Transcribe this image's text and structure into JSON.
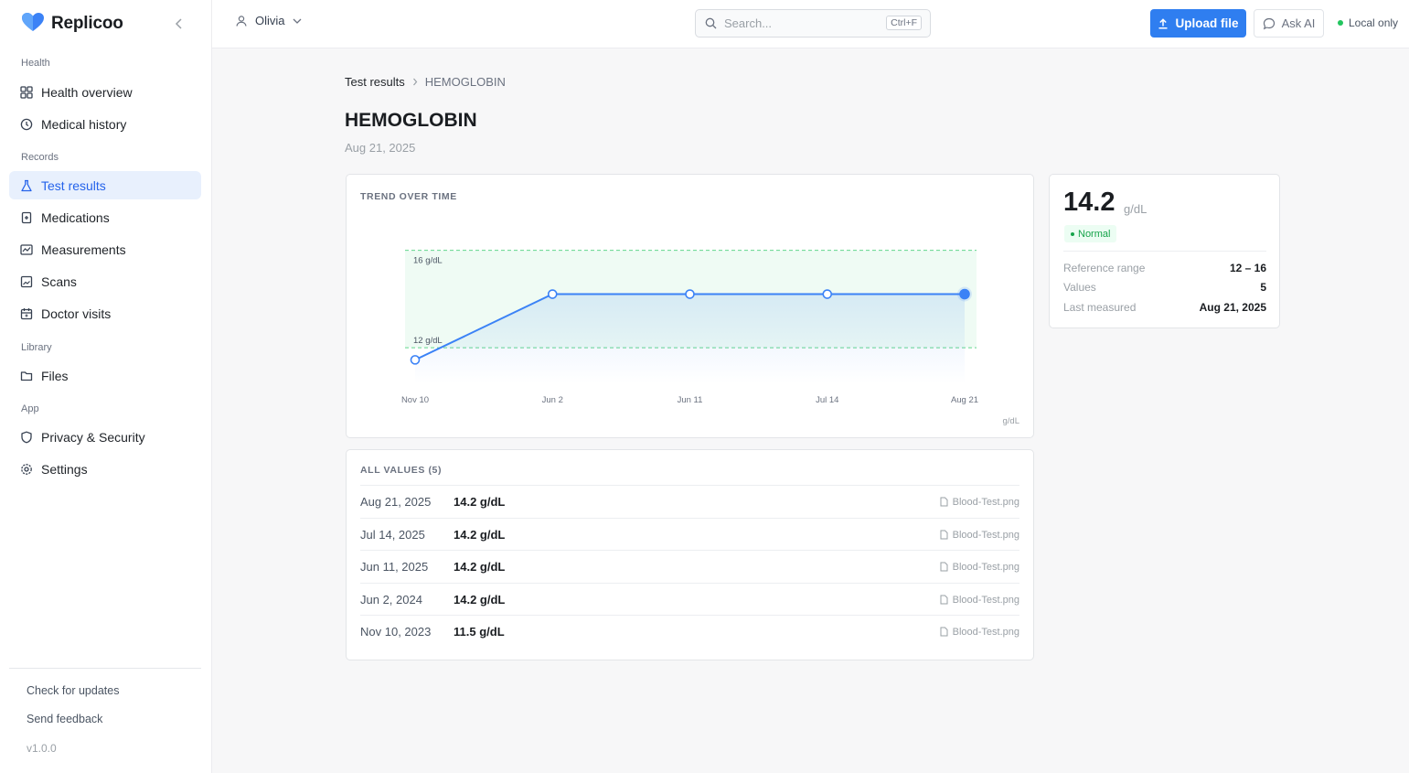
{
  "app": {
    "name": "Replicoo"
  },
  "sidebar": {
    "sections": [
      {
        "label": "Health",
        "items": [
          {
            "label": "Health overview",
            "icon": "grid-icon"
          },
          {
            "label": "Medical history",
            "icon": "clock-icon"
          }
        ]
      },
      {
        "label": "Records",
        "items": [
          {
            "label": "Test results",
            "icon": "flask-icon",
            "active": true
          },
          {
            "label": "Medications",
            "icon": "pill-icon"
          },
          {
            "label": "Measurements",
            "icon": "chart-icon"
          },
          {
            "label": "Scans",
            "icon": "image-icon"
          },
          {
            "label": "Doctor visits",
            "icon": "calendar-icon"
          }
        ]
      },
      {
        "label": "Library",
        "items": [
          {
            "label": "Files",
            "icon": "folder-icon"
          }
        ]
      },
      {
        "label": "App",
        "items": [
          {
            "label": "Privacy & Security",
            "icon": "shield-icon"
          },
          {
            "label": "Settings",
            "icon": "gear-icon"
          }
        ]
      }
    ],
    "footer": {
      "check_updates": "Check for updates",
      "send_feedback": "Send feedback",
      "version": "v1.0.0"
    }
  },
  "header": {
    "user": "Olivia",
    "search_placeholder": "Search...",
    "search_shortcut": "Ctrl+F",
    "upload_label": "Upload file",
    "ask_label": "Ask AI",
    "status_label": "Local only"
  },
  "breadcrumb": {
    "parent": "Test results",
    "current": "HEMOGLOBIN"
  },
  "page": {
    "title": "HEMOGLOBIN",
    "date": "Aug 21, 2025"
  },
  "chart_card": {
    "title": "TREND OVER TIME"
  },
  "chart_data": {
    "type": "line",
    "x": [
      "Nov 10",
      "Jun 2",
      "Jun 11",
      "Jul 14",
      "Aug 21"
    ],
    "values": [
      11.5,
      14.2,
      14.2,
      14.2,
      14.2
    ],
    "reference_low": 12,
    "reference_high": 16,
    "reference_low_label": "12 g/dL",
    "reference_high_label": "16 g/dL",
    "unit_label": "g/dL",
    "ylim": [
      10.5,
      17
    ],
    "line_color": "#3b82f6",
    "reference_color": "#22c55e"
  },
  "values_card": {
    "title": "ALL VALUES (5)",
    "rows": [
      {
        "date": "Aug 21, 2025",
        "value": "14.2 g/dL",
        "file": "Blood-Test.png"
      },
      {
        "date": "Jul 14, 2025",
        "value": "14.2 g/dL",
        "file": "Blood-Test.png"
      },
      {
        "date": "Jun 11, 2025",
        "value": "14.2 g/dL",
        "file": "Blood-Test.png"
      },
      {
        "date": "Jun 2, 2024",
        "value": "14.2 g/dL",
        "file": "Blood-Test.png"
      },
      {
        "date": "Nov 10, 2023",
        "value": "11.5 g/dL",
        "file": "Blood-Test.png"
      }
    ]
  },
  "summary": {
    "value": "14.2",
    "unit": "g/dL",
    "status": "Normal",
    "reference_range_label": "Reference range",
    "reference_range": "12 – 16",
    "values_label": "Values",
    "values_count": "5",
    "last_measured_label": "Last measured",
    "last_measured": "Aug 21, 2025"
  }
}
